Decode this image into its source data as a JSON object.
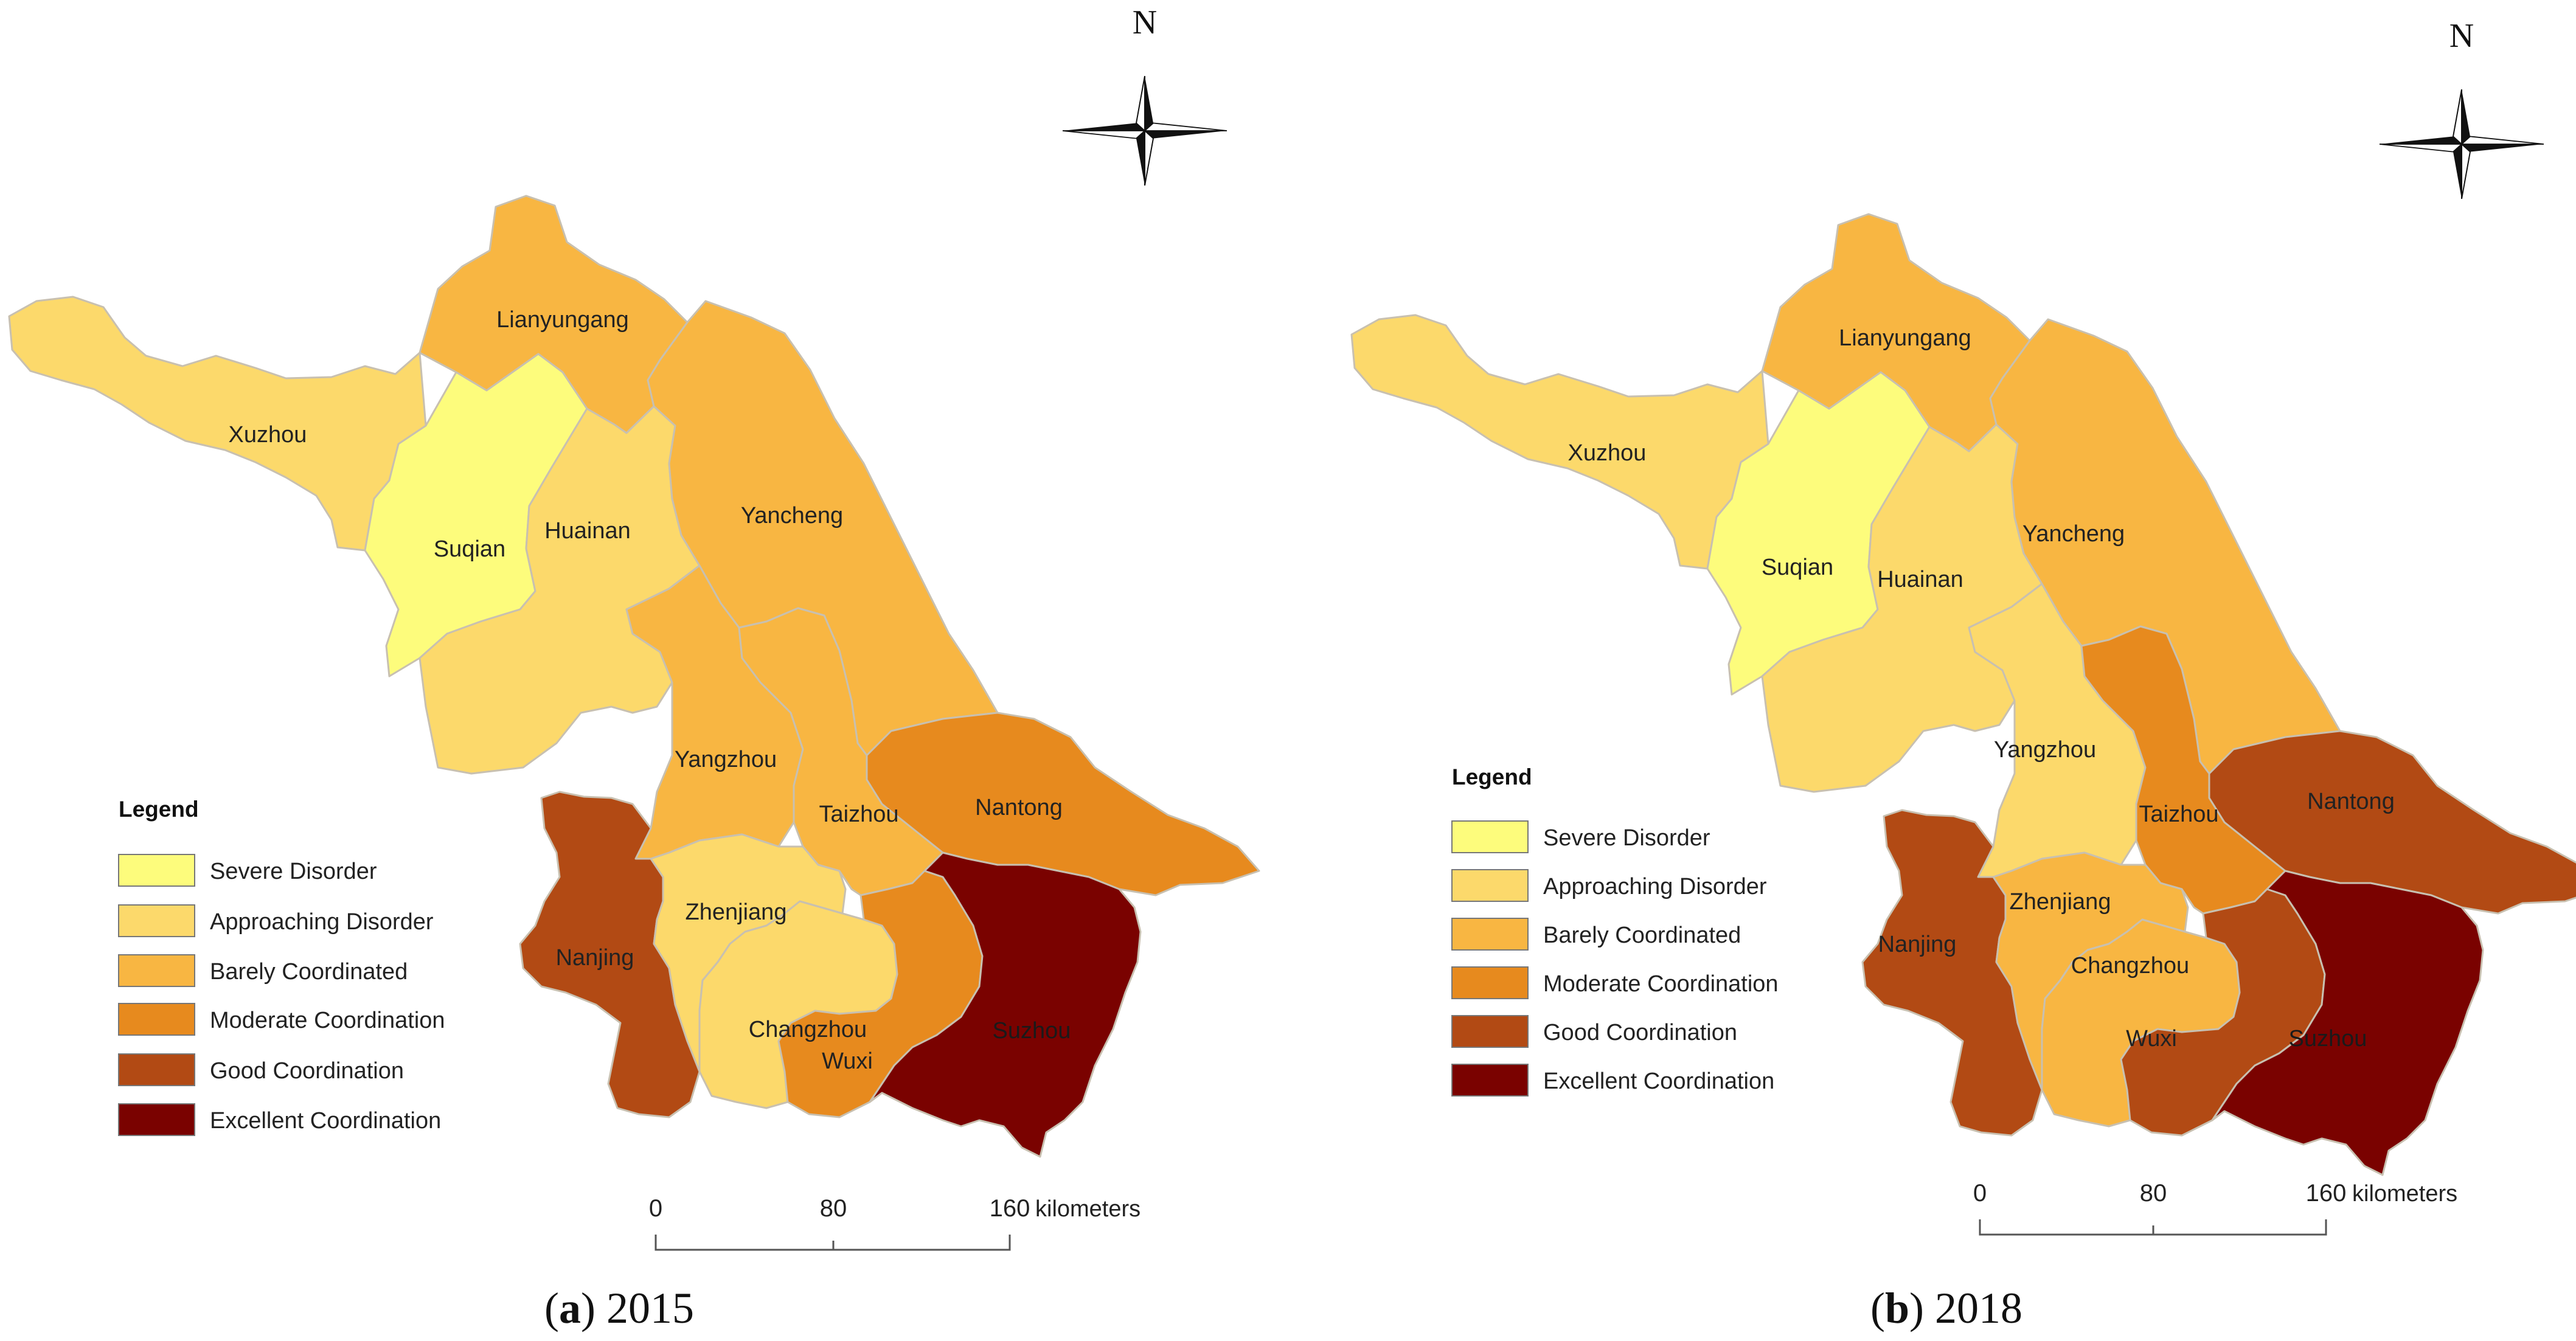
{
  "colors": {
    "Severe Disorder": "#fdfc7c",
    "Approaching Disorder": "#fcd96b",
    "Barely Coordinated": "#f8b642",
    "Moderate Coordination": "#e78a1e",
    "Good Coordination": "#b24a14",
    "Excellent Coordination": "#7a0200"
  },
  "legend": {
    "title": "Legend",
    "items": [
      "Severe Disorder",
      "Approaching Disorder",
      "Barely Coordinated",
      "Moderate Coordination",
      "Good Coordination",
      "Excellent Coordination"
    ]
  },
  "north_label": "N",
  "scale_bar": {
    "ticks": [
      "0",
      "80",
      "160"
    ],
    "unit": "kilometers"
  },
  "maps": [
    {
      "caption_letter": "a",
      "caption_year": "2015",
      "regions": {
        "Xuzhou": "Approaching Disorder",
        "Lianyungang": "Barely Coordinated",
        "Suqian": "Severe Disorder",
        "Huainan": "Approaching Disorder",
        "Yancheng": "Barely Coordinated",
        "Yangzhou": "Barely Coordinated",
        "Taizhou": "Barely Coordinated",
        "Nantong": "Moderate Coordination",
        "Nanjing": "Good Coordination",
        "Zhenjiang": "Approaching Disorder",
        "Changzhou": "Approaching Disorder",
        "Wuxi": "Moderate Coordination",
        "Suzhou": "Excellent Coordination"
      }
    },
    {
      "caption_letter": "b",
      "caption_year": "2018",
      "regions": {
        "Xuzhou": "Approaching Disorder",
        "Lianyungang": "Barely Coordinated",
        "Suqian": "Severe Disorder",
        "Huainan": "Approaching Disorder",
        "Yancheng": "Barely Coordinated",
        "Yangzhou": "Approaching Disorder",
        "Taizhou": "Moderate Coordination",
        "Nantong": "Good Coordination",
        "Nanjing": "Good Coordination",
        "Zhenjiang": "Barely Coordinated",
        "Changzhou": "Barely Coordinated",
        "Wuxi": "Good Coordination",
        "Suzhou": "Excellent Coordination"
      }
    }
  ]
}
